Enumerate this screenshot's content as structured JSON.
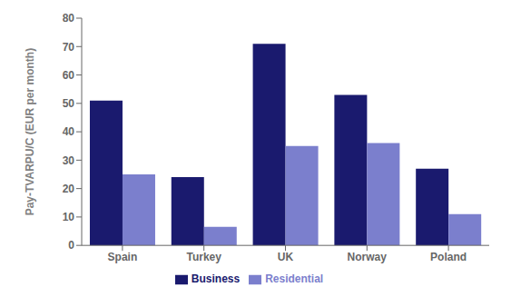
{
  "chart_data": {
    "type": "bar",
    "categories": [
      "Spain",
      "Turkey",
      "UK",
      "Norway",
      "Poland"
    ],
    "series": [
      {
        "name": "Business",
        "color": "#1a1a6e",
        "values": [
          51,
          24,
          71,
          53,
          27
        ]
      },
      {
        "name": "Residential",
        "color": "#7b7fcd",
        "values": [
          25,
          6.5,
          35,
          36,
          11
        ]
      }
    ],
    "ylabel": "Pay-TVARPU/C (EUR per month)",
    "ylim": [
      0,
      80
    ],
    "yticks": [
      0,
      10,
      20,
      30,
      40,
      50,
      60,
      70,
      80
    ],
    "legend": "bottom",
    "grid": false
  }
}
